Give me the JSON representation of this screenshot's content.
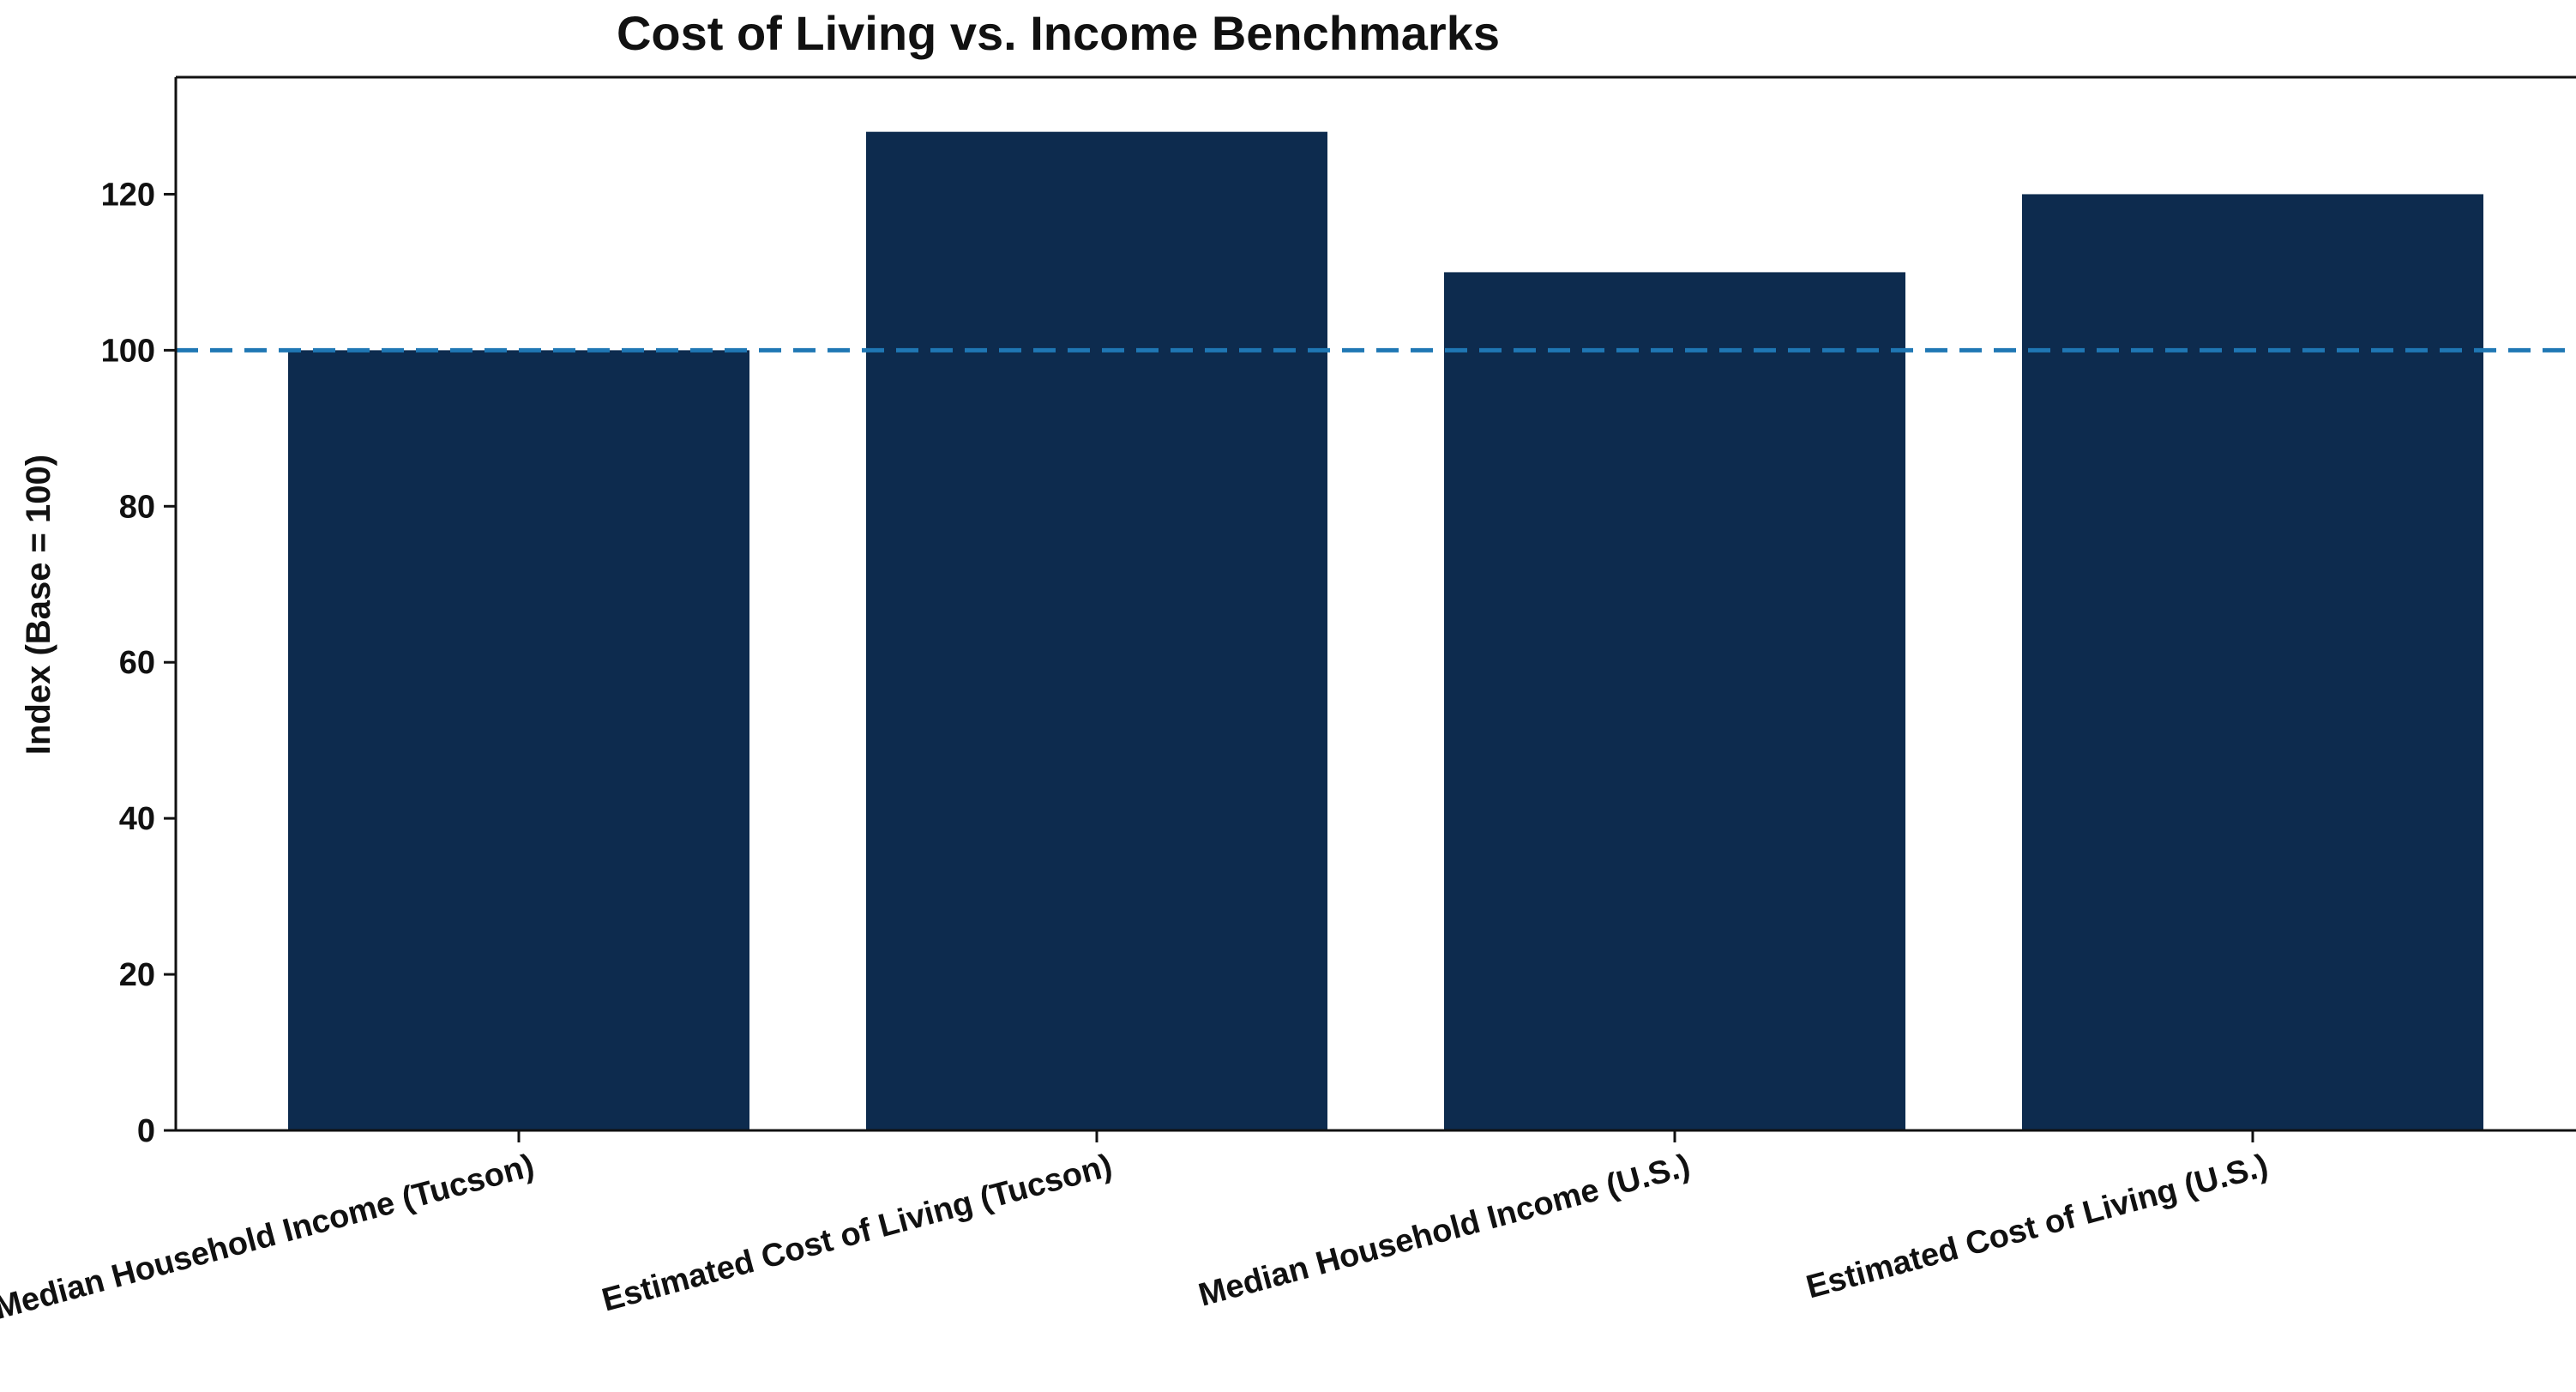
{
  "chart_data": {
    "type": "bar",
    "title": "Cost of Living vs. Income Benchmarks",
    "xlabel": "",
    "ylabel": "Index (Base = 100)",
    "categories": [
      "Median Household Income (Tucson)",
      "Estimated Cost of Living (Tucson)",
      "Median Household Income (U.S.)",
      "Estimated Cost of Living (U.S.)"
    ],
    "values": [
      100,
      128,
      110,
      120
    ],
    "ylim": [
      0,
      135
    ],
    "yticks": [
      0,
      20,
      40,
      60,
      80,
      100,
      120
    ],
    "reference_line": {
      "value": 100,
      "style": "dashed",
      "color": "#1f77b4"
    },
    "bar_color": "#0d2b4e",
    "grid": false,
    "legend": "none"
  }
}
